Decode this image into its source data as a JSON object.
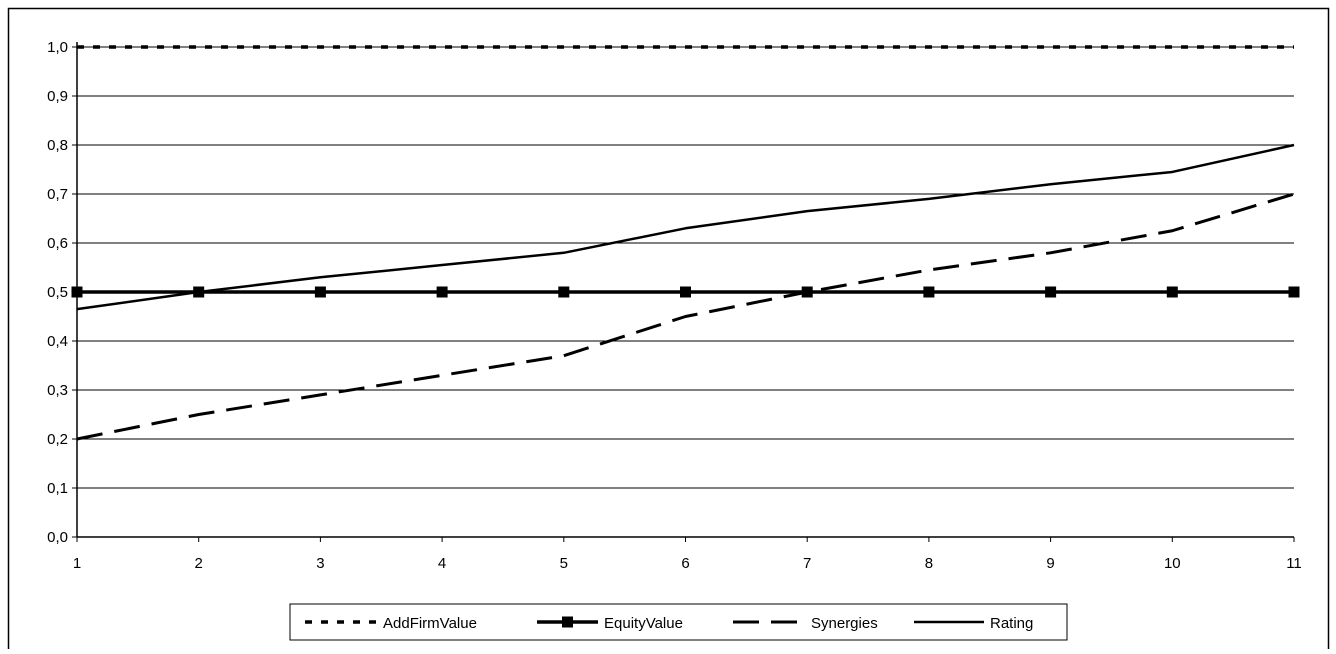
{
  "chart_data": {
    "type": "line",
    "x": [
      1,
      2,
      3,
      4,
      5,
      6,
      7,
      8,
      9,
      10,
      11
    ],
    "x_tick_labels": [
      "1",
      "2",
      "3",
      "4",
      "5",
      "6",
      "7",
      "8",
      "9",
      "10",
      "11"
    ],
    "y_tick_labels": [
      "0,0",
      "0,1",
      "0,2",
      "0,3",
      "0,4",
      "0,5",
      "0,6",
      "0,7",
      "0,8",
      "0,9",
      "1,0"
    ],
    "ylim": [
      0,
      1
    ],
    "xlim": [
      1,
      11
    ],
    "grid": "horizontal",
    "legend_position": "bottom",
    "title": "",
    "xlabel": "",
    "ylabel": "",
    "series": [
      {
        "name": "AddFirmValue",
        "style": "dotted",
        "marker": "none",
        "values": [
          1.0,
          1.0,
          1.0,
          1.0,
          1.0,
          1.0,
          1.0,
          1.0,
          1.0,
          1.0,
          1.0
        ]
      },
      {
        "name": "EquityValue",
        "style": "solid-thick",
        "marker": "square",
        "values": [
          0.5,
          0.5,
          0.5,
          0.5,
          0.5,
          0.5,
          0.5,
          0.5,
          0.5,
          0.5,
          0.5
        ]
      },
      {
        "name": "Synergies",
        "style": "dashed",
        "marker": "none",
        "values": [
          0.2,
          0.25,
          0.29,
          0.33,
          0.37,
          0.45,
          0.5,
          0.545,
          0.58,
          0.625,
          0.7
        ]
      },
      {
        "name": "Rating",
        "style": "solid",
        "marker": "none",
        "values": [
          0.465,
          0.5,
          0.53,
          0.555,
          0.58,
          0.63,
          0.665,
          0.69,
          0.72,
          0.745,
          0.8
        ]
      }
    ],
    "colors": {
      "line": "#000000",
      "grid": "#000000",
      "background": "#ffffff"
    }
  }
}
